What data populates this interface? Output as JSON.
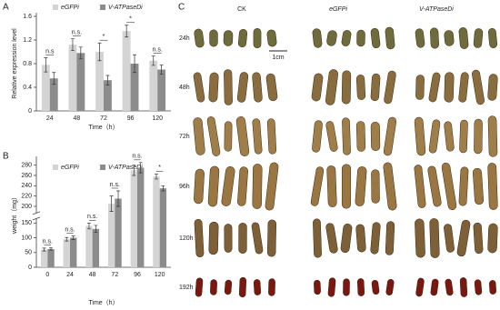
{
  "chart_data": [
    {
      "type": "bar",
      "panel_label": "A",
      "x_label": "Time（h）",
      "y_label": "Relative expression level",
      "categories": [
        "24",
        "48",
        "72",
        "96",
        "120"
      ],
      "series": [
        {
          "name": "eGFPi",
          "color": "#d4d4d4",
          "values": [
            0.78,
            1.12,
            1.0,
            1.35,
            0.85
          ],
          "errors": [
            0.12,
            0.1,
            0.15,
            0.1,
            0.08
          ]
        },
        {
          "name": "V-ATPaseDi",
          "color": "#8c8c8c",
          "values": [
            0.55,
            0.98,
            0.52,
            0.8,
            0.7
          ],
          "errors": [
            0.1,
            0.1,
            0.08,
            0.15,
            0.08
          ]
        }
      ],
      "annotations": [
        "n.s",
        "n.s.",
        "*",
        "*",
        "n.s."
      ],
      "ylim": [
        0,
        1.6
      ],
      "yticks": [
        0,
        0.4,
        0.8,
        1.2,
        1.6
      ]
    },
    {
      "type": "bar",
      "panel_label": "B",
      "x_label": "Time（h）",
      "y_label": "weight（mg）",
      "categories": [
        "0",
        "24",
        "48",
        "72",
        "96",
        "120"
      ],
      "series": [
        {
          "name": "eGFPi",
          "color": "#d4d4d4",
          "values": [
            60,
            95,
            140,
            205,
            270,
            258
          ],
          "errors": [
            5,
            6,
            10,
            15,
            10,
            5
          ]
        },
        {
          "name": "V-ATPaseDi",
          "color": "#8c8c8c",
          "values": [
            62,
            100,
            130,
            215,
            275,
            235
          ],
          "errors": [
            4,
            6,
            12,
            15,
            10,
            5
          ]
        }
      ],
      "annotations": [
        "n.s.",
        "n.s.",
        "n.s.",
        "n.s.",
        "n.s.",
        "*"
      ],
      "ylim": [
        0,
        290
      ],
      "ybreak": [
        160,
        190
      ],
      "yticks": [
        0,
        50,
        100,
        150,
        200,
        220,
        240,
        260,
        280
      ]
    }
  ],
  "photo_panel": {
    "label": "C",
    "columns": [
      "CK",
      "eGFPi",
      "V-ATPaseDi"
    ],
    "rows": [
      "24h",
      "48h",
      "72h",
      "96h",
      "120h",
      "192h"
    ],
    "scale_bar": "1cm"
  }
}
